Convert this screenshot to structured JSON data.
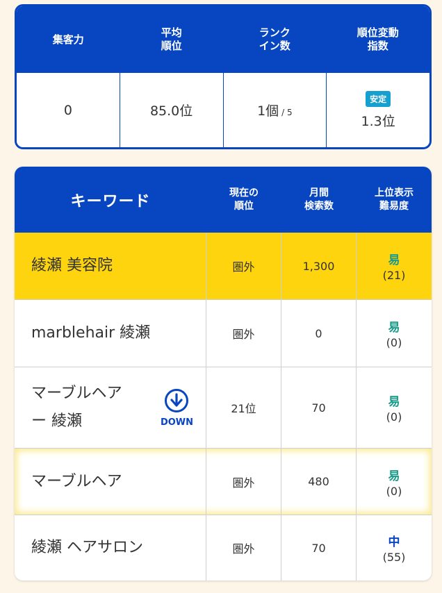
{
  "summary": {
    "headers": [
      "集客力",
      "平均\n順位",
      "ランク\nイン数",
      "順位変動\n指数"
    ],
    "traffic": "0",
    "avg_rank": "85.0位",
    "rank_in": "1個",
    "rank_in_total": "/ 5",
    "stability_badge": "安定",
    "volatility": "1.3位",
    "colors": {
      "primary": "#0846c1",
      "badge": "#16a0cf"
    }
  },
  "keywords": {
    "headers": {
      "keyword": "キーワード",
      "rank": "現在の\n順位",
      "volume": "月間\n検索数",
      "difficulty": "上位表示\n難易度"
    },
    "rows": [
      {
        "keyword": "綾瀬 美容院",
        "rank": "圏外",
        "volume": "1,300",
        "difficulty": "易",
        "difficulty_score": "(21)"
      },
      {
        "keyword": "marblehair 綾瀬",
        "rank": "圏外",
        "volume": "0",
        "difficulty": "易",
        "difficulty_score": "(0)"
      },
      {
        "keyword": "マーブルヘア\nー 綾瀬",
        "rank": "21位",
        "volume": "70",
        "difficulty": "易",
        "difficulty_score": "(0)",
        "trend_icon": "arrow-down-circle-icon",
        "trend": "DOWN"
      },
      {
        "keyword": "マーブルヘア",
        "rank": "圏外",
        "volume": "480",
        "difficulty": "易",
        "difficulty_score": "(0)"
      },
      {
        "keyword": "綾瀬 ヘアサロン",
        "rank": "圏外",
        "volume": "70",
        "difficulty": "中",
        "difficulty_score": "(55)"
      }
    ],
    "colors": {
      "highlight_row": "#fdd40d",
      "easy": "#1a9a8a",
      "medium": "#0846c1"
    }
  }
}
